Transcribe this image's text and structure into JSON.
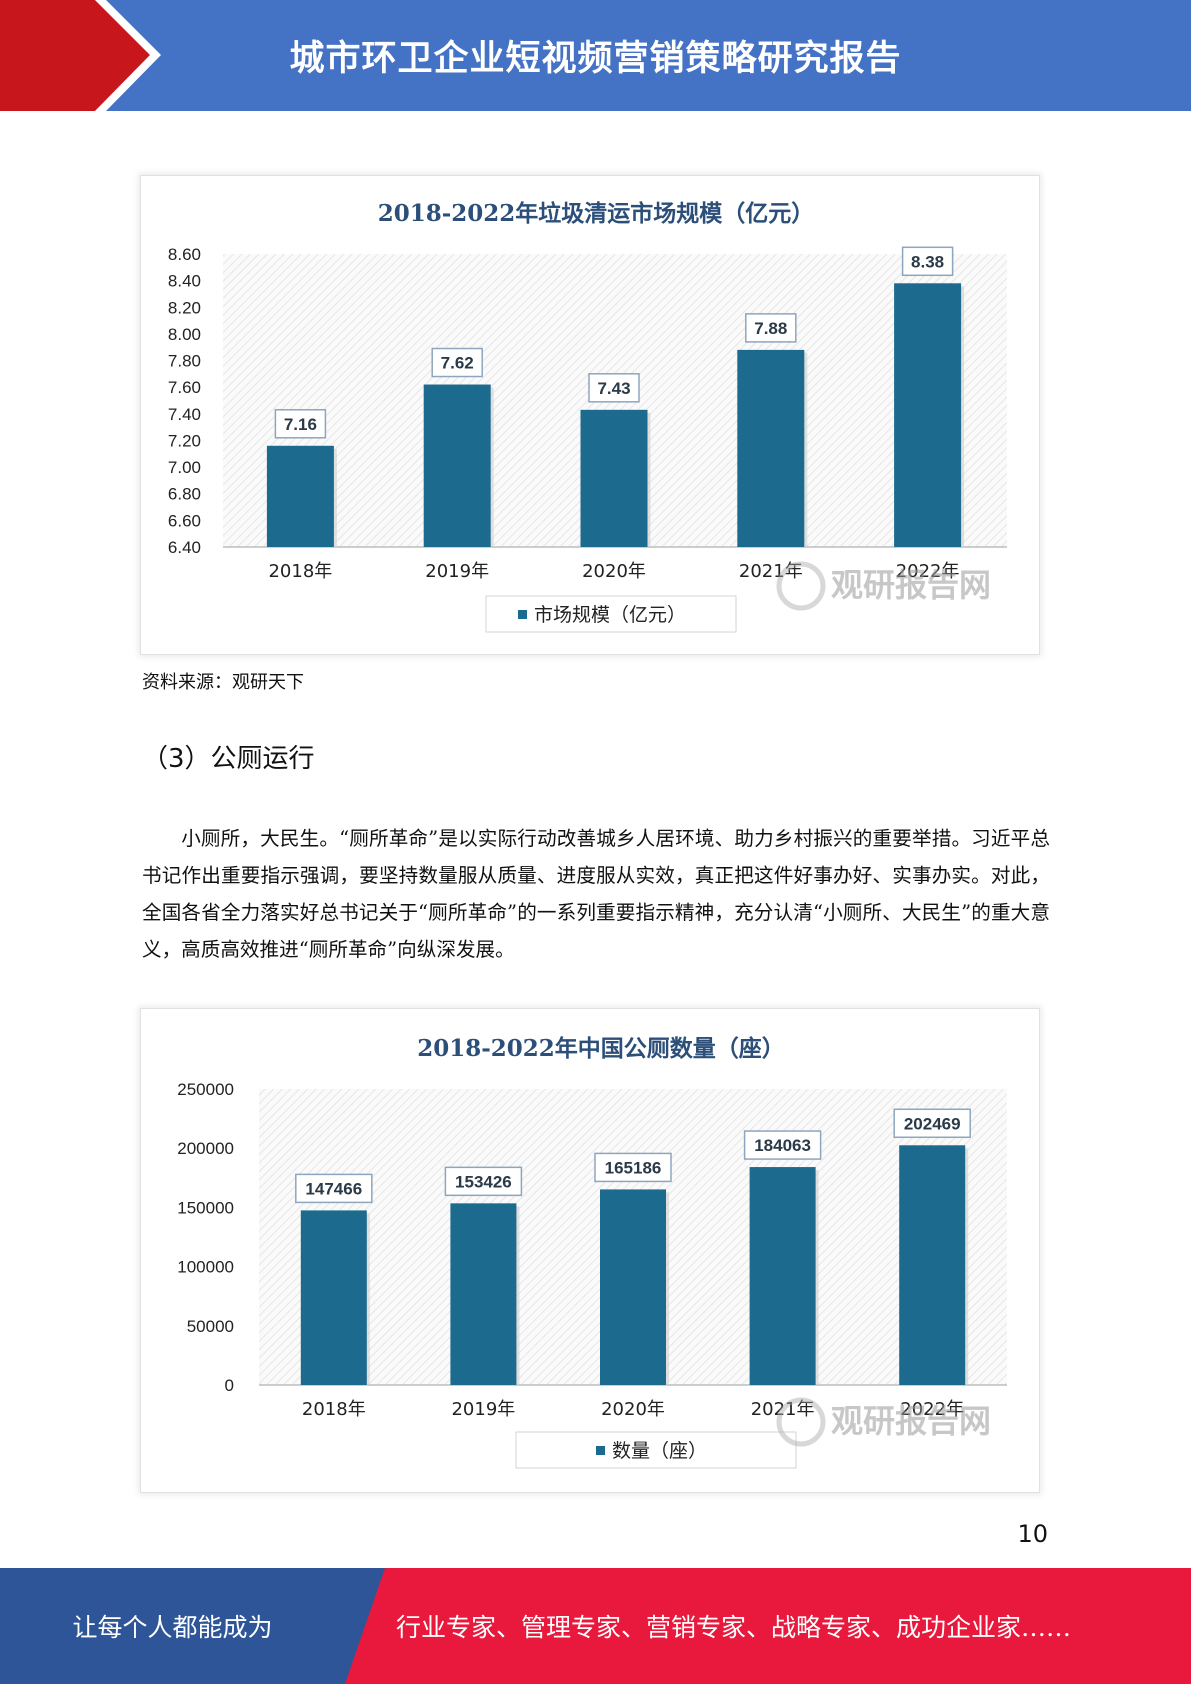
{
  "header": {
    "title": "城市环卫企业短视频营销策略研究报告",
    "colors": {
      "red": "#c8161d",
      "blue": "#4472c4"
    }
  },
  "chart_data": [
    {
      "type": "bar",
      "title": "2018-2022年垃圾清运市场规模（亿元）",
      "categories": [
        "2018年",
        "2019年",
        "2020年",
        "2021年",
        "2022年"
      ],
      "series": [
        {
          "name": "市场规模（亿元）",
          "values": [
            7.16,
            7.62,
            7.43,
            7.88,
            8.38
          ]
        }
      ],
      "data_labels": [
        "7.16",
        "7.62",
        "7.43",
        "7.88",
        "8.38"
      ],
      "y_ticks": [
        "8.60",
        "8.40",
        "8.20",
        "8.00",
        "7.80",
        "7.60",
        "7.40",
        "7.20",
        "7.00",
        "6.80",
        "6.60",
        "6.40"
      ],
      "ylim": [
        6.4,
        8.6
      ],
      "xlabel": "",
      "ylabel": "",
      "legend_position": "bottom",
      "bar_color": "#1c6a8d",
      "watermark": "观研报告网"
    },
    {
      "type": "bar",
      "title": "2018-2022年中国公厕数量（座）",
      "categories": [
        "2018年",
        "2019年",
        "2020年",
        "2021年",
        "2022年"
      ],
      "series": [
        {
          "name": "数量（座）",
          "values": [
            147466,
            153426,
            165186,
            184063,
            202469
          ]
        }
      ],
      "data_labels": [
        "147466",
        "153426",
        "165186",
        "184063",
        "202469"
      ],
      "y_ticks": [
        "250000",
        "200000",
        "150000",
        "100000",
        "50000",
        "0"
      ],
      "ylim": [
        0,
        250000
      ],
      "xlabel": "",
      "ylabel": "",
      "legend_position": "bottom",
      "bar_color": "#1c6a8d",
      "watermark": "观研报告网"
    }
  ],
  "body": {
    "source_note": "资料来源：观研天下",
    "section_heading": "（3）公厕运行",
    "paragraph": "小厕所，大民生。“厕所革命”是以实际行动改善城乡人居环境、助力乡村振兴的重要举措。习近平总书记作出重要指示强调，要坚持数量服从质量、进度服从实效，真正把这件好事办好、实事办实。对此，全国各省全力落实好总书记关于“厕所革命”的一系列重要指示精神，充分认清“小厕所、大民生”的重大意义，高质高效推进“厕所革命”向纵深发展。",
    "page_number": "10"
  },
  "footer": {
    "left_text": "让每个人都能成为",
    "right_text": "行业专家、管理专家、营销专家、战略专家、成功企业家……",
    "colors": {
      "blue": "#2e5597",
      "red": "#e8193c"
    }
  }
}
